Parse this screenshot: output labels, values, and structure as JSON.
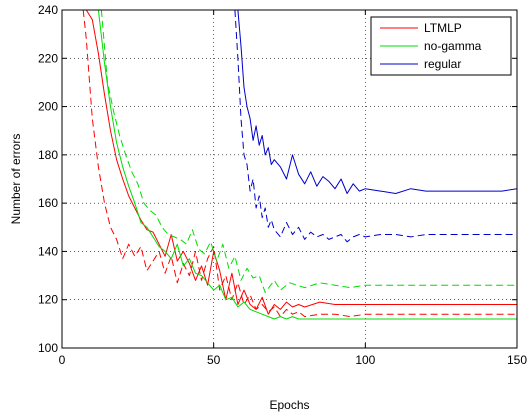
{
  "chart_data": {
    "type": "line",
    "title": "",
    "xlabel": "Epochs",
    "ylabel": "Number of errors",
    "xlim": [
      0,
      150
    ],
    "ylim": [
      100,
      240
    ],
    "xticks": [
      0,
      50,
      100,
      150
    ],
    "yticks": [
      100,
      120,
      140,
      160,
      180,
      200,
      220,
      240
    ],
    "grid": true,
    "legend": {
      "placement": "top-right",
      "entries": [
        "LTMLP",
        "no-gamma",
        "regular"
      ]
    },
    "colors": {
      "LTMLP": "#ff0000",
      "no-gamma": "#00dd00",
      "regular": "#0000cc"
    },
    "series": [
      {
        "name": "LTMLP",
        "style": "solid",
        "color": "#ff0000",
        "x": [
          8,
          10,
          12,
          14,
          16,
          18,
          20,
          22,
          24,
          26,
          28,
          30,
          32,
          34,
          36,
          38,
          40,
          42,
          44,
          46,
          48,
          50,
          52,
          54,
          56,
          58,
          60,
          62,
          64,
          66,
          68,
          70,
          72,
          74,
          76,
          78,
          80,
          85,
          90,
          95,
          100,
          110,
          120,
          130,
          140,
          150
        ],
        "y": [
          240,
          236,
          222,
          205,
          190,
          178,
          170,
          163,
          158,
          153,
          149,
          148,
          143,
          138,
          147,
          136,
          140,
          135,
          128,
          134,
          126,
          140,
          132,
          120,
          131,
          118,
          124,
          118,
          116,
          121,
          114,
          118,
          116,
          119,
          117,
          118,
          117,
          119,
          118,
          118,
          118,
          118,
          118,
          118,
          118,
          118
        ]
      },
      {
        "name": "LTMLP",
        "style": "dashed",
        "color": "#ff0000",
        "x": [
          7,
          8,
          10,
          12,
          14,
          16,
          18,
          20,
          22,
          24,
          26,
          28,
          30,
          32,
          34,
          36,
          38,
          40,
          42,
          44,
          46,
          48,
          50,
          52,
          54,
          56,
          58,
          60,
          62,
          64,
          66,
          68,
          70,
          72,
          74,
          76,
          78,
          80,
          85,
          90,
          95,
          100,
          110,
          120,
          130,
          140,
          150
        ],
        "y": [
          240,
          228,
          195,
          175,
          160,
          150,
          145,
          137,
          143,
          138,
          142,
          132,
          136,
          140,
          131,
          138,
          127,
          135,
          130,
          140,
          128,
          137,
          142,
          124,
          130,
          120,
          127,
          118,
          122,
          116,
          118,
          115,
          117,
          113,
          116,
          114,
          115,
          113,
          114,
          114,
          113,
          114,
          114,
          114,
          114,
          114,
          114
        ]
      },
      {
        "name": "no-gamma",
        "style": "solid",
        "color": "#00dd00",
        "x": [
          12,
          14,
          16,
          18,
          20,
          22,
          24,
          26,
          28,
          30,
          32,
          34,
          36,
          38,
          40,
          42,
          44,
          46,
          48,
          50,
          52,
          54,
          56,
          58,
          60,
          62,
          64,
          66,
          68,
          70,
          72,
          74,
          76,
          78,
          80,
          85,
          90,
          95,
          100,
          110,
          120,
          130,
          140,
          150
        ],
        "y": [
          240,
          218,
          200,
          185,
          175,
          167,
          160,
          152,
          150,
          146,
          142,
          140,
          137,
          143,
          134,
          137,
          131,
          130,
          127,
          124,
          126,
          120,
          121,
          117,
          119,
          116,
          115,
          114,
          113,
          112,
          113,
          112,
          113,
          112,
          112,
          112,
          112,
          112,
          112,
          112,
          112,
          112,
          112,
          112
        ]
      },
      {
        "name": "no-gamma",
        "style": "dashed",
        "color": "#00dd00",
        "x": [
          13,
          15,
          17,
          19,
          21,
          23,
          25,
          27,
          29,
          31,
          33,
          35,
          37,
          39,
          41,
          43,
          45,
          47,
          49,
          51,
          53,
          55,
          57,
          59,
          61,
          63,
          65,
          67,
          70,
          72,
          75,
          80,
          85,
          90,
          95,
          100,
          110,
          120,
          130,
          140,
          150
        ],
        "y": [
          240,
          210,
          198,
          188,
          180,
          173,
          168,
          160,
          157,
          155,
          150,
          147,
          146,
          145,
          143,
          149,
          141,
          139,
          144,
          136,
          143,
          133,
          138,
          128,
          133,
          129,
          130,
          123,
          128,
          124,
          127,
          125,
          127,
          126,
          125,
          126,
          126,
          126,
          126,
          126,
          126
        ]
      },
      {
        "name": "regular",
        "style": "solid",
        "color": "#0000cc",
        "x": [
          58,
          59,
          60,
          61,
          62,
          63,
          64,
          65,
          66,
          67,
          68,
          69,
          70,
          72,
          74,
          76,
          78,
          80,
          82,
          84,
          86,
          88,
          90,
          92,
          94,
          96,
          98,
          100,
          105,
          110,
          115,
          120,
          125,
          130,
          135,
          140,
          145,
          150
        ],
        "y": [
          240,
          225,
          208,
          200,
          195,
          186,
          192,
          184,
          188,
          180,
          183,
          176,
          178,
          175,
          170,
          180,
          172,
          168,
          173,
          167,
          171,
          169,
          166,
          170,
          164,
          168,
          165,
          166,
          165,
          164,
          166,
          165,
          165,
          165,
          165,
          165,
          165,
          166
        ]
      },
      {
        "name": "regular",
        "style": "dashed",
        "color": "#0000cc",
        "x": [
          57,
          58,
          59,
          60,
          61,
          62,
          63,
          64,
          65,
          66,
          67,
          68,
          69,
          70,
          72,
          74,
          76,
          78,
          80,
          82,
          84,
          86,
          88,
          90,
          92,
          94,
          96,
          98,
          100,
          105,
          110,
          115,
          120,
          125,
          130,
          135,
          140,
          145,
          150
        ],
        "y": [
          240,
          220,
          195,
          180,
          176,
          165,
          170,
          158,
          163,
          154,
          158,
          150,
          153,
          149,
          146,
          152,
          147,
          150,
          145,
          148,
          146,
          147,
          145,
          146,
          147,
          144,
          146,
          147,
          146,
          147,
          147,
          146,
          147,
          147,
          147,
          147,
          147,
          147,
          147
        ]
      }
    ]
  }
}
